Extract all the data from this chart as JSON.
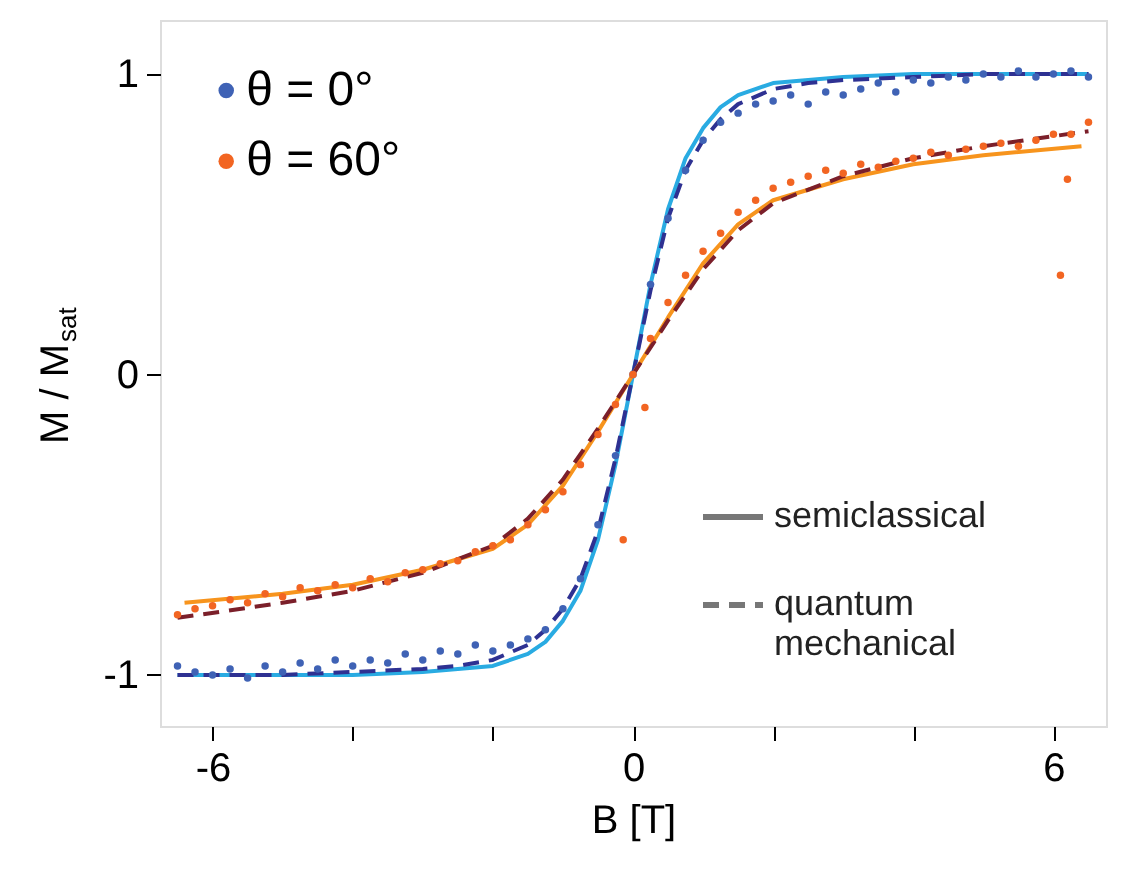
{
  "chart_data": {
    "type": "scatter",
    "xlabel": "B [T]",
    "ylabel": "M / M$_{sat}$",
    "xlim": [
      -6.75,
      6.75
    ],
    "ylim": [
      -1.17,
      1.18
    ],
    "xticks": [
      -6,
      {
        "value": -4,
        "label": null
      },
      {
        "value": -2,
        "label": null
      },
      0,
      {
        "value": 2,
        "label": null
      },
      {
        "value": 4,
        "label": null
      },
      6
    ],
    "yticks": [
      -1,
      0,
      1
    ],
    "grid": false,
    "legend": "top left",
    "annotations": [
      "semiclassical",
      "quantum mechanical"
    ],
    "series": [
      {
        "name": "θ = 0°",
        "color": "#3f62b5",
        "marker": "circle",
        "x": [
          -6.5,
          -6.25,
          -6,
          -5.75,
          -5.5,
          -5.25,
          -5,
          -4.75,
          -4.5,
          -4.25,
          -4,
          -3.75,
          -3.5,
          -3.25,
          -3,
          -2.75,
          -2.5,
          -2.25,
          -2,
          -1.75,
          -1.5,
          -1.25,
          -1,
          -0.75,
          -0.5,
          -0.25,
          0,
          0.25,
          0.5,
          0.75,
          1,
          1.25,
          1.5,
          1.75,
          2,
          2.25,
          2.5,
          2.75,
          3,
          3.25,
          3.5,
          3.75,
          4,
          4.25,
          4.5,
          4.75,
          5,
          5.25,
          5.5,
          5.75,
          6,
          6.25,
          6.5
        ],
        "values": [
          -0.97,
          -0.99,
          -1.0,
          -0.98,
          -1.01,
          -0.97,
          -0.99,
          -0.96,
          -0.98,
          -0.95,
          -0.97,
          -0.95,
          -0.96,
          -0.93,
          -0.95,
          -0.92,
          -0.93,
          -0.9,
          -0.92,
          -0.9,
          -0.88,
          -0.85,
          -0.78,
          -0.68,
          -0.5,
          -0.27,
          0.0,
          0.3,
          0.52,
          0.68,
          0.78,
          0.84,
          0.87,
          0.9,
          0.91,
          0.93,
          0.9,
          0.94,
          0.93,
          0.95,
          0.97,
          0.94,
          0.98,
          0.97,
          0.99,
          0.98,
          1.0,
          0.99,
          1.01,
          0.99,
          1.0,
          1.01,
          0.99
        ]
      },
      {
        "name": "θ = 60°",
        "color": "#f26522",
        "marker": "circle",
        "x": [
          -6.5,
          -6.25,
          -6,
          -5.75,
          -5.5,
          -5.25,
          -5,
          -4.75,
          -4.5,
          -4.25,
          -4,
          -3.75,
          -3.5,
          -3.25,
          -3,
          -2.75,
          -2.5,
          -2.25,
          -2,
          -1.75,
          -1.5,
          -1.25,
          -1,
          -0.75,
          -0.5,
          -0.25,
          -0.14,
          0,
          0.17,
          0.25,
          0.5,
          0.75,
          1,
          1.25,
          1.5,
          1.75,
          2,
          2.25,
          2.5,
          2.75,
          3,
          3.25,
          3.5,
          3.75,
          4,
          4.25,
          4.5,
          4.75,
          5,
          5.25,
          5.5,
          5.75,
          6,
          6.1,
          6.2,
          6.25,
          6.5
        ],
        "values": [
          -0.8,
          -0.78,
          -0.77,
          -0.75,
          -0.76,
          -0.73,
          -0.74,
          -0.71,
          -0.72,
          -0.7,
          -0.71,
          -0.68,
          -0.69,
          -0.66,
          -0.65,
          -0.63,
          -0.62,
          -0.59,
          -0.57,
          -0.55,
          -0.5,
          -0.45,
          -0.39,
          -0.3,
          -0.2,
          -0.1,
          -0.55,
          0.0,
          -0.11,
          0.12,
          0.24,
          0.33,
          0.41,
          0.47,
          0.54,
          0.58,
          0.62,
          0.64,
          0.66,
          0.68,
          0.67,
          0.7,
          0.69,
          0.71,
          0.72,
          0.74,
          0.73,
          0.75,
          0.76,
          0.77,
          0.76,
          0.78,
          0.8,
          0.33,
          0.65,
          0.8,
          0.84
        ]
      },
      {
        "color": "#29abe2",
        "type": "line",
        "line_style": "solid",
        "x": [
          -6.5,
          -5,
          -4,
          -3,
          -2.5,
          -2,
          -1.5,
          -1.25,
          -1,
          -0.75,
          -0.5,
          -0.25,
          0,
          0.25,
          0.5,
          0.75,
          1,
          1.25,
          1.5,
          2,
          2.5,
          3,
          4,
          5,
          6.5
        ],
        "values": [
          -1.0,
          -1.0,
          -1.0,
          -0.99,
          -0.98,
          -0.97,
          -0.93,
          -0.89,
          -0.82,
          -0.72,
          -0.55,
          -0.3,
          0,
          0.3,
          0.55,
          0.72,
          0.82,
          0.89,
          0.93,
          0.97,
          0.98,
          0.99,
          1.0,
          1.0,
          1.0
        ]
      },
      {
        "color": "#2e3192",
        "type": "line",
        "line_style": "dashed",
        "x": [
          -6.5,
          -5,
          -4,
          -3,
          -2.5,
          -2,
          -1.5,
          -1.25,
          -1,
          -0.75,
          -0.5,
          -0.25,
          0,
          0.25,
          0.5,
          0.75,
          1,
          1.25,
          1.5,
          2,
          2.5,
          3,
          4,
          5,
          6.5
        ],
        "values": [
          -1.0,
          -1.0,
          -0.99,
          -0.98,
          -0.97,
          -0.95,
          -0.9,
          -0.85,
          -0.78,
          -0.68,
          -0.52,
          -0.28,
          0,
          0.28,
          0.52,
          0.68,
          0.78,
          0.85,
          0.9,
          0.95,
          0.97,
          0.98,
          0.99,
          1.0,
          1.0
        ]
      },
      {
        "color": "#f7941d",
        "type": "line",
        "line_style": "solid",
        "x": [
          -6.4,
          -5,
          -4,
          -3,
          -2,
          -1.5,
          -1,
          -0.5,
          0,
          0.5,
          1,
          1.5,
          2,
          3,
          4,
          5,
          6.4
        ],
        "values": [
          -0.76,
          -0.73,
          -0.7,
          -0.65,
          -0.58,
          -0.5,
          -0.37,
          -0.19,
          0,
          0.19,
          0.37,
          0.5,
          0.58,
          0.65,
          0.7,
          0.73,
          0.76
        ]
      },
      {
        "color": "#7b1f2a",
        "type": "line",
        "line_style": "dashed",
        "x": [
          -6.5,
          -5,
          -4,
          -3,
          -2,
          -1.5,
          -1,
          -0.5,
          0,
          0.5,
          1,
          1.5,
          2,
          3,
          4,
          5,
          6.5
        ],
        "values": [
          -0.81,
          -0.76,
          -0.72,
          -0.66,
          -0.57,
          -0.48,
          -0.35,
          -0.18,
          0,
          0.18,
          0.35,
          0.48,
          0.57,
          0.66,
          0.72,
          0.76,
          0.81
        ]
      }
    ]
  }
}
